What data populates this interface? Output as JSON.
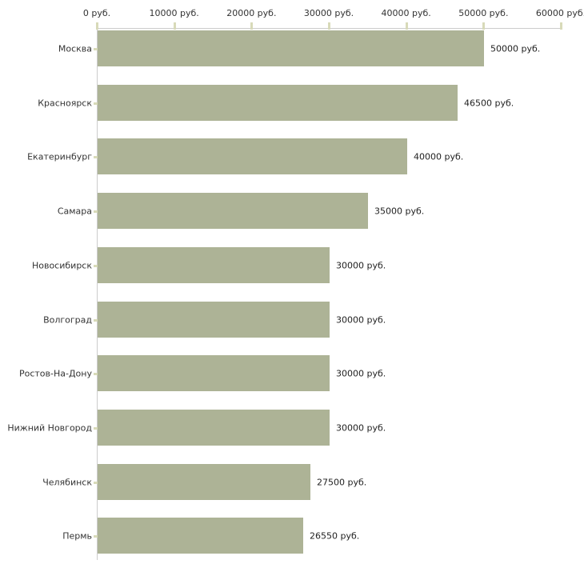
{
  "chart_data": {
    "type": "bar",
    "orientation": "horizontal",
    "title": "",
    "categories": [
      "Москва",
      "Красноярск",
      "Екатеринбург",
      "Самара",
      "Новосибирск",
      "Волгоград",
      "Ростов-На-Дону",
      "Нижний Новгород",
      "Челябинск",
      "Пермь"
    ],
    "values": [
      50000,
      46500,
      40000,
      35000,
      30000,
      30000,
      30000,
      30000,
      27500,
      26550
    ],
    "value_labels": [
      "50000 руб.",
      "46500 руб.",
      "40000 руб.",
      "35000 руб.",
      "30000 руб.",
      "30000 руб.",
      "30000 руб.",
      "30000 руб.",
      "27500 руб.",
      "26550 руб."
    ],
    "xlabel": "",
    "ylabel": "",
    "xlim": [
      0,
      60000
    ],
    "xticks": [
      0,
      10000,
      20000,
      30000,
      40000,
      50000,
      60000
    ],
    "xtick_labels": [
      "0 руб.",
      "10000 руб.",
      "20000 руб.",
      "30000 руб.",
      "40000 руб.",
      "50000 руб.",
      "60000 руб."
    ],
    "grid": false,
    "legend_position": "none",
    "colors": {
      "bar": "#adb396",
      "axis_line": "#cccccc",
      "tick_mark": "#d8dab9",
      "category_text": "#333333",
      "tick_text": "#333333",
      "value_text": "#222222",
      "background": "#ffffff"
    }
  }
}
